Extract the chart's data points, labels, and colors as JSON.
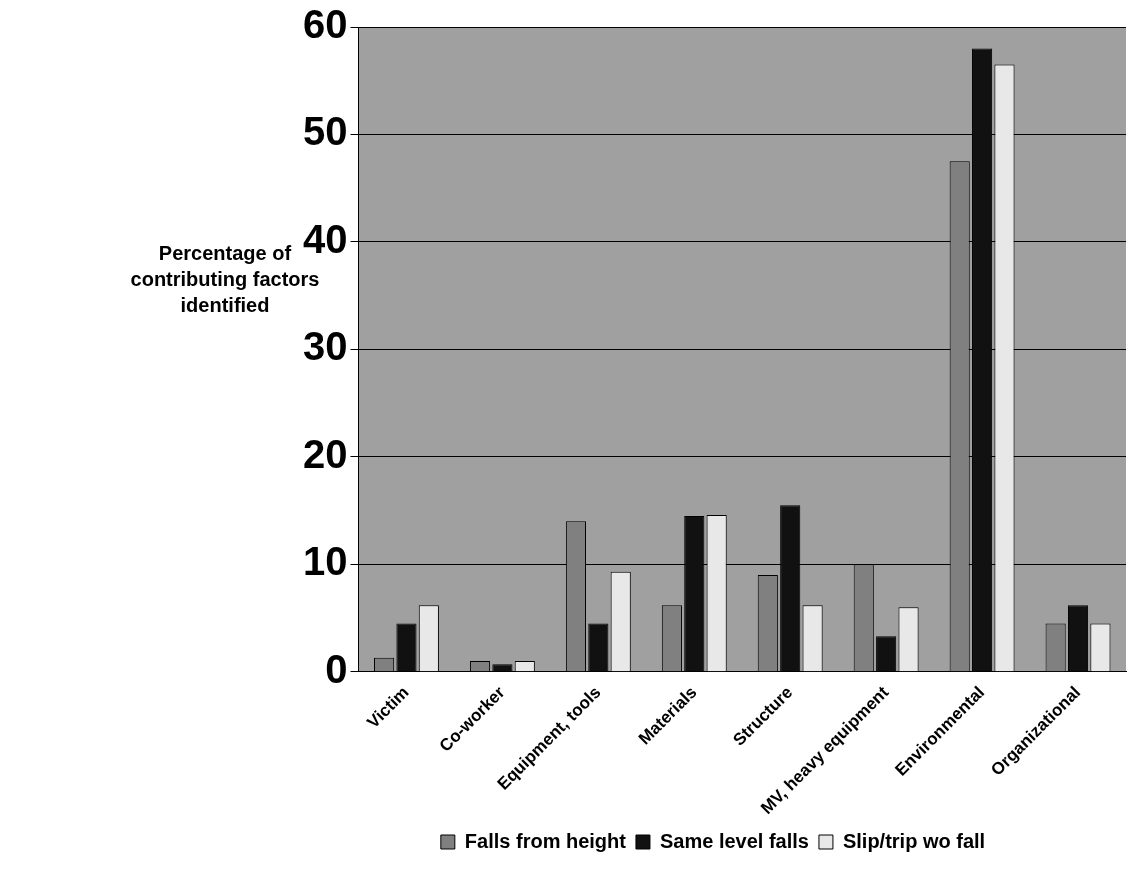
{
  "chart_data": {
    "type": "bar",
    "ylabel": "Percentage of contributing factors identified",
    "categories": [
      "Victim",
      "Co-worker",
      "Equipment, tools",
      "Materials",
      "Structure",
      "MV, heavy equipment",
      "Environmental",
      "Organizational"
    ],
    "series": [
      {
        "name": "Falls from height",
        "color": "#808080",
        "values": [
          1.3,
          1.0,
          14,
          6.2,
          9,
          10,
          47.5,
          4.5
        ]
      },
      {
        "name": "Same level falls",
        "color": "#111111",
        "values": [
          4.5,
          0.7,
          4.5,
          14.5,
          15.5,
          3.3,
          58,
          6.2
        ]
      },
      {
        "name": "Slip/trip wo fall",
        "color": "#e8e8e8",
        "values": [
          6.2,
          1.0,
          9.3,
          14.6,
          6.2,
          6,
          56.5,
          4.5
        ]
      }
    ],
    "ylim": [
      0,
      60
    ],
    "yticks": [
      0,
      10,
      20,
      30,
      40,
      50,
      60
    ],
    "grid": "y",
    "legend": "bottom"
  }
}
